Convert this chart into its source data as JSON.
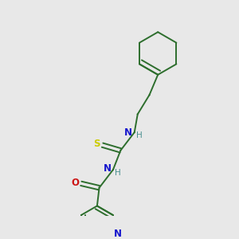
{
  "background_color": "#e8e8e8",
  "bond_color": "#2d6e2d",
  "nitrogen_color": "#1414cc",
  "oxygen_color": "#cc1414",
  "sulfur_color": "#cccc00",
  "H_color": "#4a9090",
  "figsize": [
    3.0,
    3.0
  ],
  "dpi": 100,
  "xlim": [
    0,
    10
  ],
  "ylim": [
    0,
    10
  ]
}
